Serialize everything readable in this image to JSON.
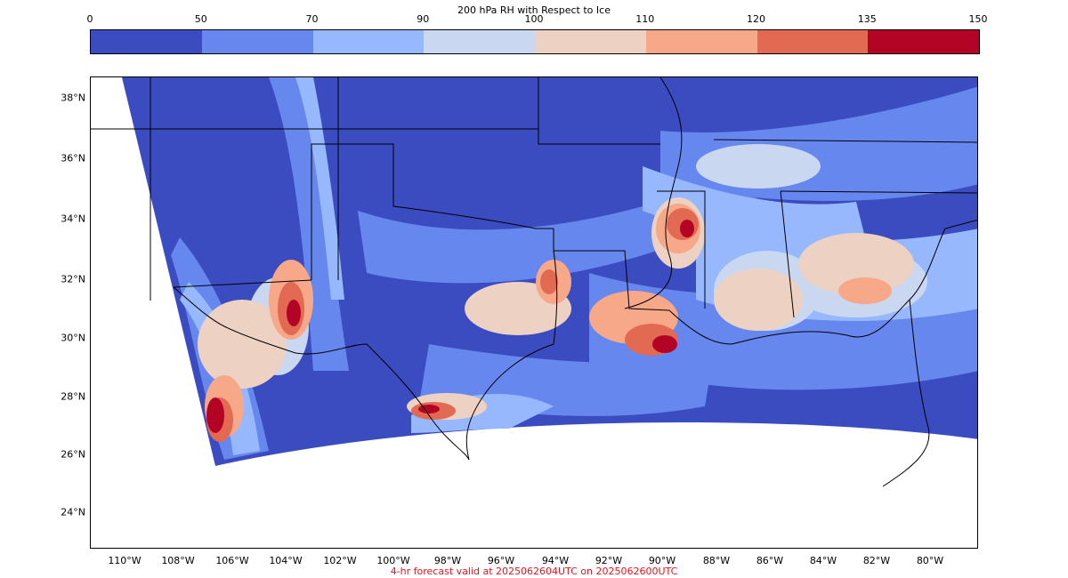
{
  "colorbar": {
    "title": "200 hPa RH with Respect to Ice",
    "ticks": [
      "0",
      "50",
      "70",
      "90",
      "100",
      "110",
      "120",
      "135",
      "150"
    ],
    "colors": [
      "#3b4cc0",
      "#6687ed",
      "#98b8fe",
      "#c9d7f0",
      "#edd1c2",
      "#f7a889",
      "#e26952",
      "#b40426"
    ]
  },
  "map": {
    "lat_labels": [
      "38°N",
      "36°N",
      "34°N",
      "32°N",
      "30°N",
      "28°N",
      "26°N",
      "24°N"
    ],
    "lon_labels": [
      "110°W",
      "108°W",
      "106°W",
      "104°W",
      "102°W",
      "100°W",
      "98°W",
      "96°W",
      "94°W",
      "92°W",
      "90°W",
      "88°W",
      "86°W",
      "84°W",
      "82°W",
      "80°W"
    ],
    "background_color": "#3b4cc0",
    "land_outline_color": "#000000"
  },
  "footer": {
    "text": "4-hr forecast valid at 2025062604UTC on 2025062600UTC",
    "color": "#e8121d"
  }
}
